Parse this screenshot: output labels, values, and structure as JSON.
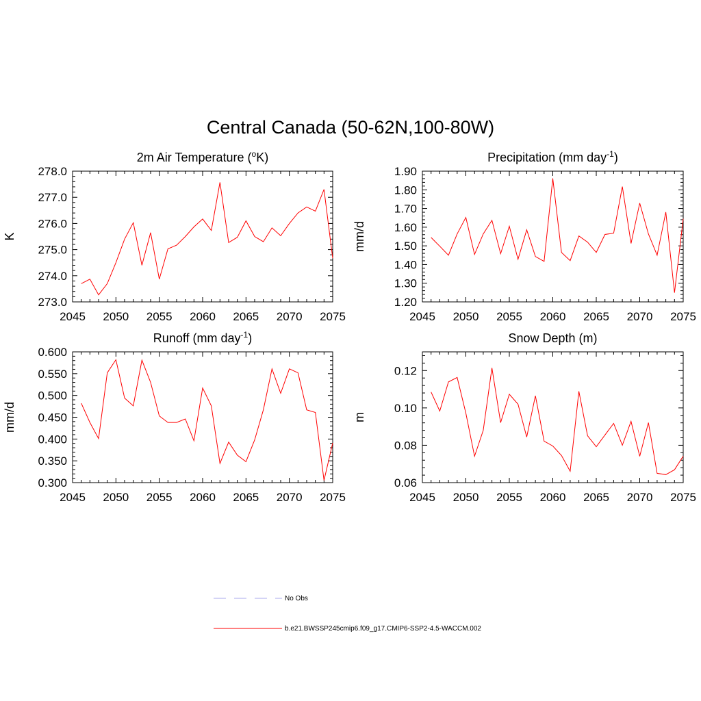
{
  "figure": {
    "title": "Central Canada (50-62N,100-80W)"
  },
  "legend": [
    {
      "label": "No Obs",
      "color": "#aaaaee",
      "dash": true
    },
    {
      "label": "b.e21.BWSSP245cmip6.f09_g17.CMIP6-SSP2-4.5-WACCM.002",
      "color": "#ff0000",
      "dash": false
    }
  ],
  "chart_data": [
    {
      "type": "line",
      "title": "2m Air Temperature (°K)",
      "title_text": "2m Air Temperature (",
      "title_sup": "o",
      "title_tail": "K)",
      "ylabel": "K",
      "xlabel": "",
      "xlim": [
        2045,
        2075
      ],
      "ylim": [
        273.0,
        278.0
      ],
      "xticks": [
        "2045",
        "2050",
        "2055",
        "2060",
        "2065",
        "2070",
        "2075"
      ],
      "yticks": [
        "273.0",
        "274.0",
        "275.0",
        "276.0",
        "277.0",
        "278.0"
      ],
      "series": [
        {
          "color": "#ff0000",
          "x": [
            2046,
            2047,
            2048,
            2049,
            2050,
            2051,
            2052,
            2053,
            2054,
            2055,
            2056,
            2057,
            2058,
            2059,
            2060,
            2061,
            2062,
            2063,
            2064,
            2065,
            2066,
            2067,
            2068,
            2069,
            2070,
            2071,
            2072,
            2073,
            2074,
            2075
          ],
          "y": [
            273.7,
            273.87,
            273.27,
            273.7,
            274.5,
            275.4,
            276.03,
            274.4,
            275.65,
            273.87,
            275.03,
            275.17,
            275.5,
            275.87,
            276.17,
            275.73,
            277.57,
            275.27,
            275.47,
            276.1,
            275.5,
            275.3,
            275.83,
            275.53,
            276.0,
            276.4,
            276.63,
            276.47,
            277.3,
            274.67
          ]
        }
      ]
    },
    {
      "type": "line",
      "title": "Precipitation (mm day-1)",
      "title_text": "Precipitation (mm day",
      "title_sup": "-1",
      "title_tail": ")",
      "ylabel": "mm/d",
      "xlabel": "",
      "xlim": [
        2045,
        2075
      ],
      "ylim": [
        1.2,
        1.9
      ],
      "xticks": [
        "2045",
        "2050",
        "2055",
        "2060",
        "2065",
        "2070",
        "2075"
      ],
      "yticks": [
        "1.20",
        "1.30",
        "1.40",
        "1.50",
        "1.60",
        "1.70",
        "1.80",
        "1.90"
      ],
      "series": [
        {
          "color": "#ff0000",
          "x": [
            2046,
            2047,
            2048,
            2049,
            2050,
            2051,
            2052,
            2053,
            2054,
            2055,
            2056,
            2057,
            2058,
            2059,
            2060,
            2061,
            2062,
            2063,
            2064,
            2065,
            2066,
            2067,
            2068,
            2069,
            2070,
            2071,
            2072,
            2073,
            2074,
            2075
          ],
          "y": [
            1.545,
            1.498,
            1.45,
            1.564,
            1.652,
            1.454,
            1.564,
            1.637,
            1.458,
            1.605,
            1.428,
            1.586,
            1.443,
            1.417,
            1.861,
            1.465,
            1.421,
            1.553,
            1.52,
            1.465,
            1.561,
            1.568,
            1.817,
            1.513,
            1.729,
            1.564,
            1.45,
            1.681,
            1.249,
            1.645
          ]
        }
      ]
    },
    {
      "type": "line",
      "title": "Runoff (mm day-1)",
      "title_text": "Runoff (mm day",
      "title_sup": "-1",
      "title_tail": ")",
      "ylabel": "mm/d",
      "xlabel": "",
      "xlim": [
        2045,
        2075
      ],
      "ylim": [
        0.3,
        0.6
      ],
      "xticks": [
        "2045",
        "2050",
        "2055",
        "2060",
        "2065",
        "2070",
        "2075"
      ],
      "yticks": [
        "0.300",
        "0.350",
        "0.400",
        "0.450",
        "0.500",
        "0.550",
        "0.600"
      ],
      "series": [
        {
          "color": "#ff0000",
          "x": [
            2046,
            2047,
            2048,
            2049,
            2050,
            2051,
            2052,
            2053,
            2054,
            2055,
            2056,
            2057,
            2058,
            2059,
            2060,
            2061,
            2062,
            2063,
            2064,
            2065,
            2066,
            2067,
            2068,
            2069,
            2070,
            2071,
            2072,
            2073,
            2074,
            2075
          ],
          "y": [
            0.482,
            0.438,
            0.401,
            0.552,
            0.582,
            0.494,
            0.476,
            0.581,
            0.53,
            0.453,
            0.438,
            0.438,
            0.446,
            0.396,
            0.517,
            0.476,
            0.344,
            0.393,
            0.363,
            0.348,
            0.398,
            0.467,
            0.561,
            0.505,
            0.561,
            0.552,
            0.467,
            0.461,
            0.305,
            0.391
          ]
        }
      ]
    },
    {
      "type": "line",
      "title": "Snow Depth (m)",
      "title_text": "Snow Depth (m)",
      "title_sup": "",
      "title_tail": "",
      "ylabel": "m",
      "xlabel": "",
      "xlim": [
        2045,
        2075
      ],
      "ylim": [
        0.06,
        0.13
      ],
      "xticks": [
        "2045",
        "2050",
        "2055",
        "2060",
        "2065",
        "2070",
        "2075"
      ],
      "yticks": [
        "0.06",
        "0.08",
        "0.10",
        "0.12"
      ],
      "yticks_values": [
        0.06,
        0.08,
        0.1,
        0.12
      ],
      "series": [
        {
          "color": "#ff0000",
          "x": [
            2046,
            2047,
            2048,
            2049,
            2050,
            2051,
            2052,
            2053,
            2054,
            2055,
            2056,
            2057,
            2058,
            2059,
            2060,
            2061,
            2062,
            2063,
            2064,
            2065,
            2066,
            2067,
            2068,
            2069,
            2070,
            2071,
            2072,
            2073,
            2074,
            2075
          ],
          "y": [
            0.1085,
            0.0983,
            0.1139,
            0.1163,
            0.0972,
            0.0741,
            0.088,
            0.1214,
            0.0921,
            0.1073,
            0.102,
            0.0844,
            0.1065,
            0.0822,
            0.0796,
            0.0745,
            0.0661,
            0.1089,
            0.0851,
            0.0792,
            0.0855,
            0.0917,
            0.08,
            0.0928,
            0.0741,
            0.0921,
            0.065,
            0.0643,
            0.0669,
            0.0742
          ]
        }
      ]
    }
  ]
}
